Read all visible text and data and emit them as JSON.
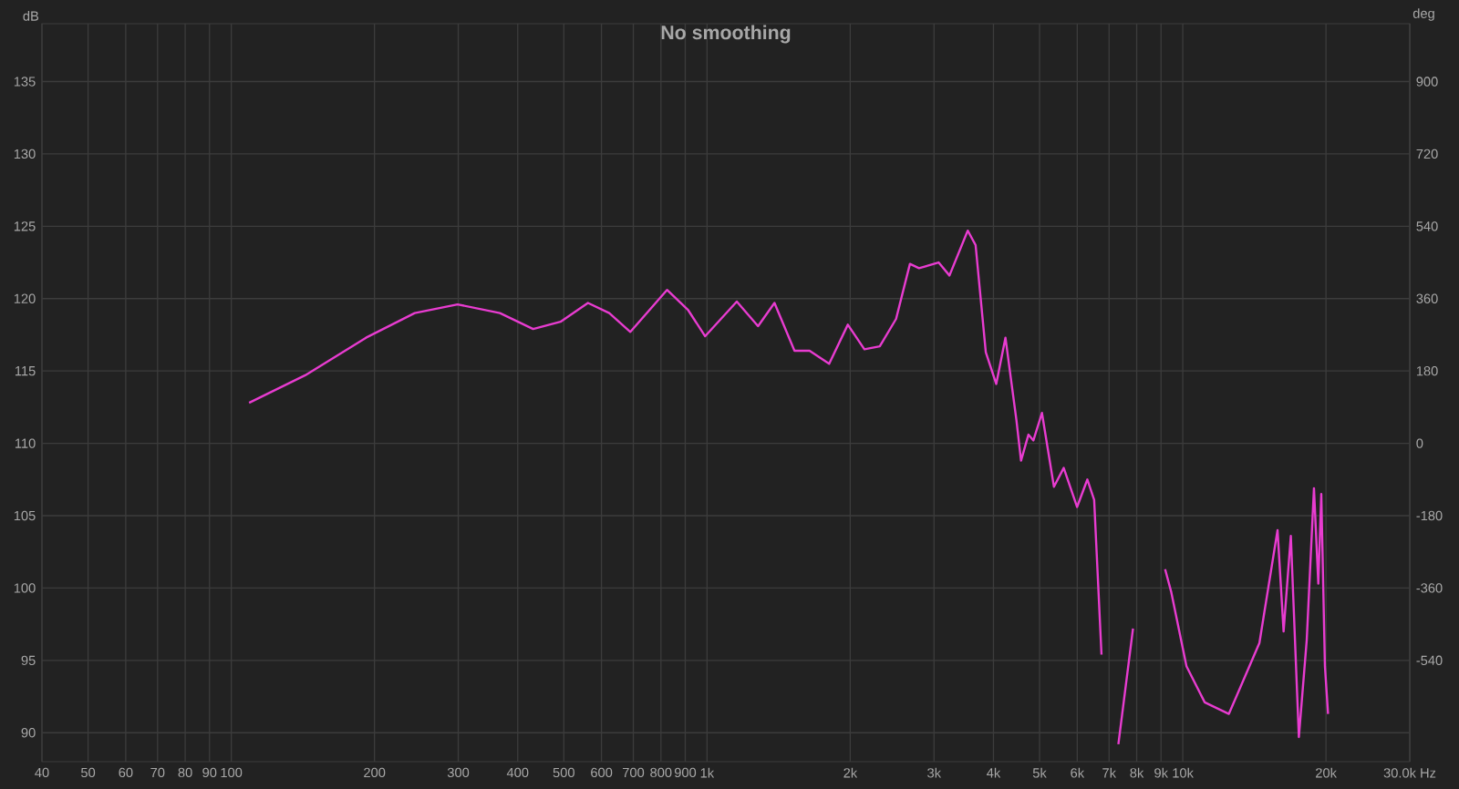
{
  "chart_data": {
    "type": "line",
    "title": "No smoothing",
    "ylabel": "dB",
    "y2label": "deg",
    "log": "x",
    "grid": true,
    "xlim": [
      40,
      30000
    ],
    "ylim": [
      88,
      139
    ],
    "y2lim": [
      -792,
      1044
    ],
    "xticks": [
      40,
      50,
      60,
      70,
      80,
      90,
      100,
      200,
      300,
      400,
      500,
      600,
      700,
      800,
      900,
      {
        "value": 1000,
        "label": "1k"
      },
      {
        "value": 2000,
        "label": "2k"
      },
      {
        "value": 3000,
        "label": "3k"
      },
      {
        "value": 4000,
        "label": "4k"
      },
      {
        "value": 5000,
        "label": "5k"
      },
      {
        "value": 6000,
        "label": "6k"
      },
      {
        "value": 7000,
        "label": "7k"
      },
      {
        "value": 8000,
        "label": "8k"
      },
      {
        "value": 9000,
        "label": "9k"
      },
      {
        "value": 10000,
        "label": "10k"
      },
      {
        "value": 20000,
        "label": "20k"
      },
      {
        "value": 30000,
        "label": "30.0k Hz"
      }
    ],
    "yticks": [
      90,
      95,
      100,
      105,
      110,
      115,
      120,
      125,
      130,
      135
    ],
    "y2ticks": [
      -540,
      -360,
      -180,
      0,
      180,
      360,
      540,
      720,
      900
    ],
    "series": [
      {
        "color": "#e83cd0",
        "x": [
          109,
          143,
          192,
          243,
          299,
          367,
          431,
          492,
          562,
          623,
          690,
          824,
          913,
          991,
          1155,
          1280,
          1386,
          1527,
          1643,
          1806,
          1977,
          2142,
          2307,
          2497,
          2670,
          2790,
          3067,
          3233,
          3532,
          3669,
          3855,
          4054,
          4239,
          4470,
          4571,
          4738,
          4853,
          5058,
          5360,
          5620,
          5995,
          6302,
          6512,
          6748,
          6948,
          7322,
          7860,
          8160,
          9180,
          9460,
          10180,
          11120,
          12500,
          14490,
          15820,
          16290,
          16870,
          17540,
          18220,
          18870,
          19270,
          19550,
          19900,
          20200
        ],
        "values": [
          112.8,
          114.7,
          117.3,
          119.0,
          119.6,
          119.0,
          117.9,
          118.4,
          119.7,
          119.0,
          117.7,
          120.6,
          119.2,
          117.4,
          119.8,
          118.1,
          119.7,
          116.4,
          116.4,
          115.5,
          118.2,
          116.5,
          116.7,
          118.6,
          122.4,
          122.1,
          122.5,
          121.6,
          124.7,
          123.7,
          116.3,
          114.1,
          117.3,
          111.6,
          108.8,
          110.6,
          110.2,
          112.1,
          107.0,
          108.3,
          105.6,
          107.5,
          106.1,
          95.4,
          null,
          89.2,
          97.2,
          null,
          101.3,
          99.7,
          94.6,
          92.1,
          91.3,
          96.2,
          104.0,
          97.0,
          103.6,
          89.7,
          96.4,
          106.9,
          100.3,
          106.5,
          94.6,
          91.3
        ]
      }
    ]
  }
}
